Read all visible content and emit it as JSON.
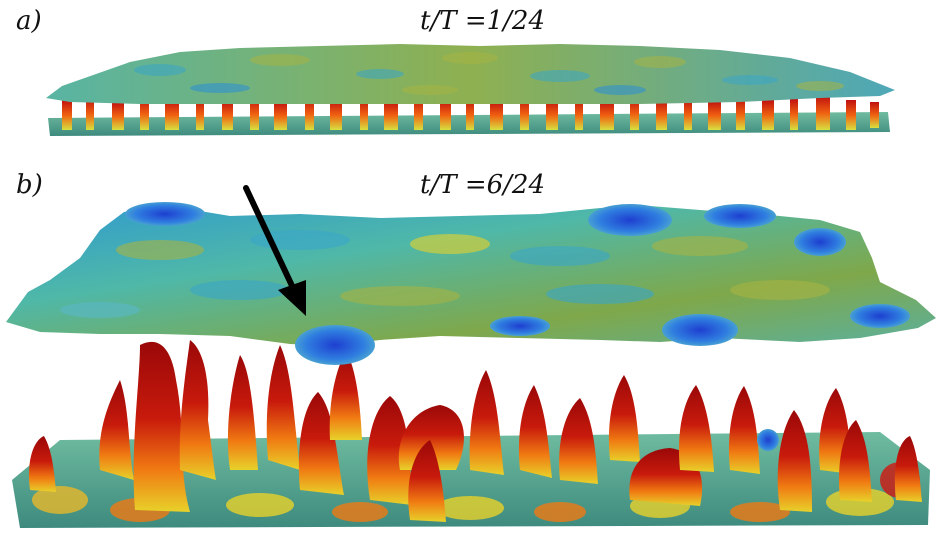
{
  "panels": [
    {
      "label": "a)",
      "time": "t/T =1/24"
    },
    {
      "label": "b)",
      "time": "t/T =6/24"
    }
  ],
  "colors": {
    "surface_teal": "#4fb8a8",
    "surface_green": "#7fa84a",
    "surface_blue": "#2a5fd6",
    "vortex_red": "#b80c0c",
    "vortex_orange": "#f06a10",
    "vortex_yellow": "#e8d22a",
    "arrow": "#000000"
  },
  "annotations": {
    "arrow": "arrow-icon"
  }
}
